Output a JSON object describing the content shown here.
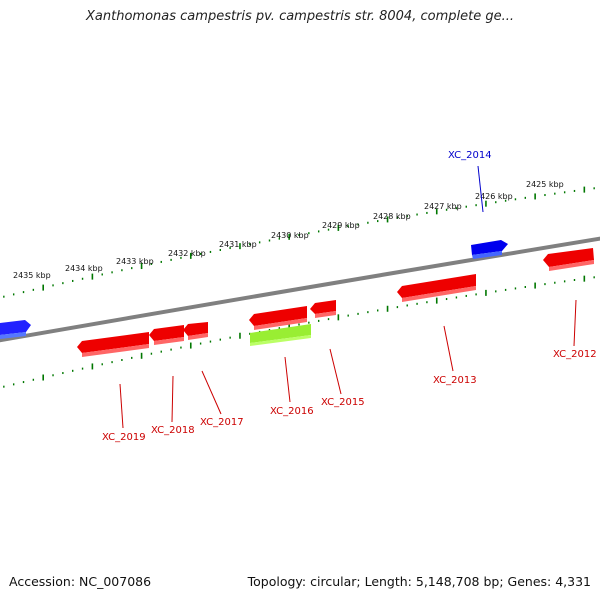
{
  "title": "Xanthomonas campestris pv. campestris str. 8004, complete ge...",
  "accession_label": "Accession: NC_007086",
  "stats_label": "Topology: circular; Length: 5,148,708 bp; Genes: 4,331",
  "colors": {
    "backbone": "#808080",
    "forward_gene": "#0000ee",
    "reverse_gene": "#ee0000",
    "highlight_gene": "#99ee33",
    "tick": "#007700",
    "label_forward": "#0000cc",
    "label_reverse": "#cc0000"
  },
  "kbp_ticks": [
    {
      "label": "2425 kbp"
    },
    {
      "label": "2426 kbp"
    },
    {
      "label": "2427 kbp"
    },
    {
      "label": "2428 kbp"
    },
    {
      "label": "2429 kbp"
    },
    {
      "label": "2430 kbp"
    },
    {
      "label": "2431 kbp"
    },
    {
      "label": "2432 kbp"
    },
    {
      "label": "2433 kbp"
    },
    {
      "label": "2434 kbp"
    },
    {
      "label": "2435 kbp"
    }
  ],
  "genes": [
    {
      "label": "XC_2012",
      "strand": "reverse"
    },
    {
      "label": "XC_2013",
      "strand": "reverse"
    },
    {
      "label": "XC_2014",
      "strand": "forward"
    },
    {
      "label": "XC_2015",
      "strand": "reverse"
    },
    {
      "label": "XC_2016",
      "strand": "reverse"
    },
    {
      "label": "XC_2017",
      "strand": "reverse"
    },
    {
      "label": "XC_2018",
      "strand": "reverse"
    },
    {
      "label": "XC_2019",
      "strand": "reverse"
    }
  ]
}
